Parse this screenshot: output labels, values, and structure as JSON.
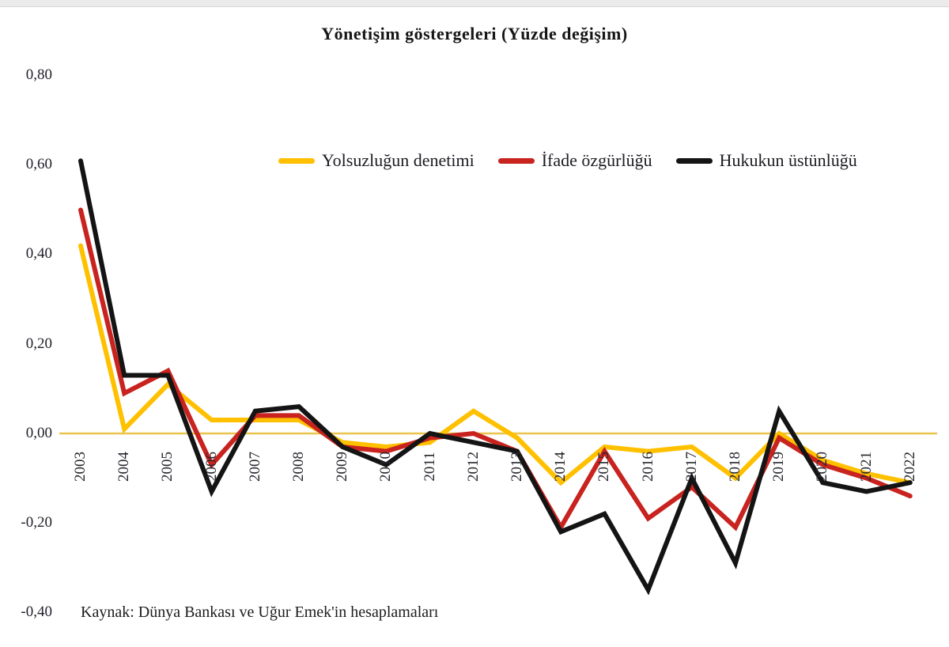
{
  "title": "Yönetişim göstergeleri (Yüzde değişim)",
  "source_note": "Kaynak: Dünya Bankası ve Uğur Emek'in hesaplamaları",
  "colors": {
    "series_yellow": "#FFC000",
    "series_red": "#C8231F",
    "series_black": "#141414",
    "zero_axis_line": "#E9C44D",
    "axis_text": "#26262e"
  },
  "y_axis": {
    "labels": [
      "0,80",
      "0,60",
      "0,40",
      "0,20",
      "0,00",
      "-0,20",
      "-0,40"
    ],
    "min": -0.4,
    "max": 0.8,
    "step": 0.2
  },
  "chart_data": {
    "type": "line",
    "title": "Yönetişim göstergeleri (Yüzde değişim)",
    "xlabel": "",
    "ylabel": "",
    "ylim": [
      -0.4,
      0.8
    ],
    "grid": false,
    "legend_position": "top-center",
    "categories": [
      "2003",
      "2004",
      "2005",
      "2006",
      "2007",
      "2008",
      "2009",
      "2010",
      "2011",
      "2012",
      "2013",
      "2014",
      "2015",
      "2016",
      "2017",
      "2018",
      "2019",
      "2020",
      "2021",
      "2022"
    ],
    "series": [
      {
        "name": "Yolsuzluğun denetimi",
        "color": "#FFC000",
        "values": [
          0.42,
          0.01,
          0.11,
          0.03,
          0.03,
          0.03,
          -0.02,
          -0.03,
          -0.02,
          0.05,
          -0.01,
          -0.11,
          -0.03,
          -0.04,
          -0.03,
          -0.1,
          0.0,
          -0.06,
          -0.09,
          -0.11
        ]
      },
      {
        "name": "İfade özgürlüğü",
        "color": "#C8231F",
        "values": [
          0.5,
          0.09,
          0.14,
          -0.07,
          0.04,
          0.04,
          -0.03,
          -0.04,
          -0.01,
          0.0,
          -0.04,
          -0.21,
          -0.04,
          -0.19,
          -0.12,
          -0.21,
          -0.01,
          -0.07,
          -0.1,
          -0.14
        ]
      },
      {
        "name": "Hukukun üstünlüğü",
        "color": "#141414",
        "values": [
          0.61,
          0.13,
          0.13,
          -0.13,
          0.05,
          0.06,
          -0.03,
          -0.07,
          0.0,
          -0.02,
          -0.04,
          -0.22,
          -0.18,
          -0.35,
          -0.1,
          -0.29,
          0.05,
          -0.11,
          -0.13,
          -0.11
        ]
      }
    ]
  }
}
